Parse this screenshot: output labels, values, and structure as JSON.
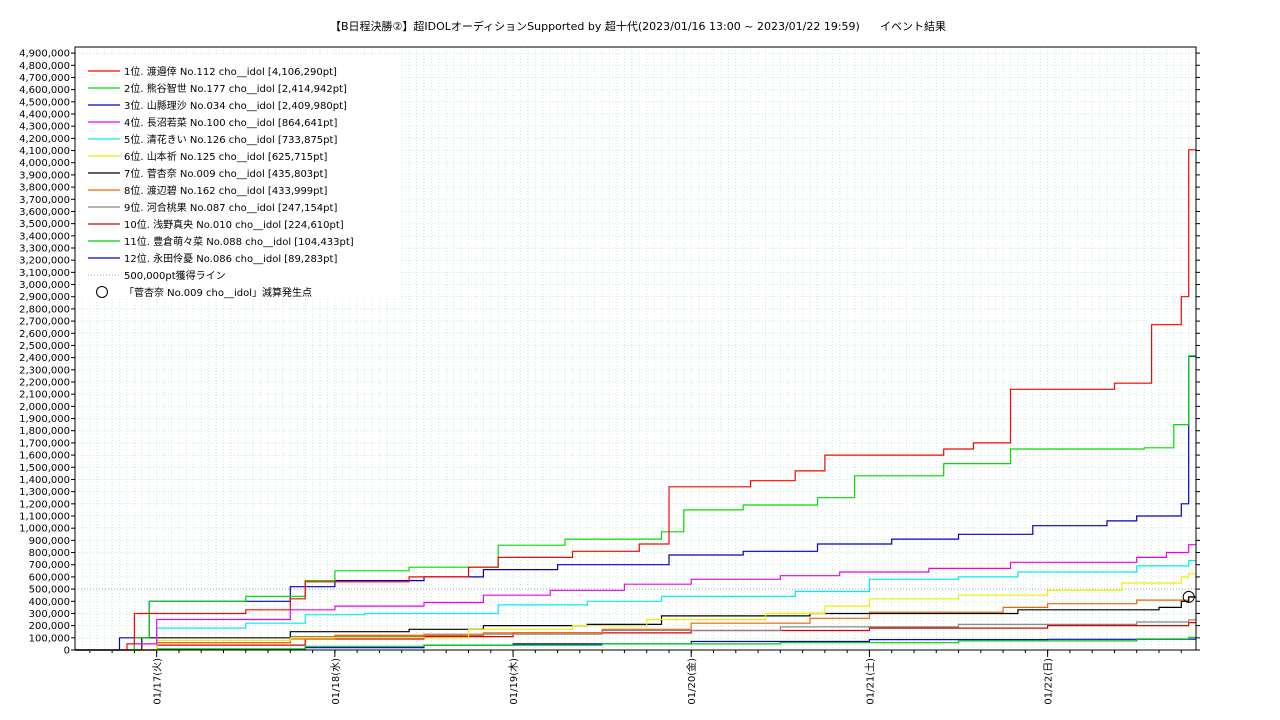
{
  "chart_data": {
    "type": "line",
    "title": "【B日程決勝②】超IDOLオーディションSupported by 超十代(2023/01/16 13:00 ~ 2023/01/22 19:59)",
    "subtitle": "イベント結果",
    "ylim": [
      0,
      4950000
    ],
    "yticks": [
      "0",
      "100,000",
      "200,000",
      "300,000",
      "400,000",
      "500,000",
      "600,000",
      "700,000",
      "800,000",
      "900,000",
      "1,000,000",
      "1,100,000",
      "1,200,000",
      "1,300,000",
      "1,400,000",
      "1,500,000",
      "1,600,000",
      "1,700,000",
      "1,800,000",
      "1,900,000",
      "2,000,000",
      "2,100,000",
      "2,200,000",
      "2,300,000",
      "2,400,000",
      "2,500,000",
      "2,600,000",
      "2,700,000",
      "2,800,000",
      "2,900,000",
      "3,000,000",
      "3,100,000",
      "3,200,000",
      "3,300,000",
      "3,400,000",
      "3,500,000",
      "3,600,000",
      "3,700,000",
      "3,800,000",
      "3,900,000",
      "4,000,000",
      "4,100,000",
      "4,200,000",
      "4,300,000",
      "4,400,000",
      "4,500,000",
      "4,600,000",
      "4,700,000",
      "4,800,000",
      "4,900,000"
    ],
    "xlim": [
      "2023-01-16 13:00",
      "2023-01-22 19:59"
    ],
    "xticks": [
      {
        "date": "2023-01-17 00:00",
        "label": "01/17(火)"
      },
      {
        "date": "2023-01-18 00:00",
        "label": "01/18(水)"
      },
      {
        "date": "2023-01-19 00:00",
        "label": "01/19(木)"
      },
      {
        "date": "2023-01-20 00:00",
        "label": "01/20(金)"
      },
      {
        "date": "2023-01-21 00:00",
        "label": "01/21(土)"
      },
      {
        "date": "2023-01-22 00:00",
        "label": "01/22(日)"
      }
    ],
    "grid": true,
    "legend_position": "top-left",
    "series": [
      {
        "name": "1位. 渡邉倖 No.112 cho__idol [4,106,290pt]",
        "color": "#ff0000",
        "points": [
          [
            "2023-01-16 13:00",
            0
          ],
          [
            "2023-01-16 20:00",
            50000
          ],
          [
            "2023-01-16 21:00",
            300000
          ],
          [
            "2023-01-17 12:00",
            330000
          ],
          [
            "2023-01-17 18:00",
            420000
          ],
          [
            "2023-01-17 20:00",
            560000
          ],
          [
            "2023-01-18 10:00",
            600000
          ],
          [
            "2023-01-18 18:00",
            680000
          ],
          [
            "2023-01-18 22:00",
            760000
          ],
          [
            "2023-01-19 08:00",
            810000
          ],
          [
            "2023-01-19 17:00",
            870000
          ],
          [
            "2023-01-19 21:00",
            1340000
          ],
          [
            "2023-01-20 08:00",
            1390000
          ],
          [
            "2023-01-20 14:00",
            1470000
          ],
          [
            "2023-01-20 18:00",
            1600000
          ],
          [
            "2023-01-21 10:00",
            1650000
          ],
          [
            "2023-01-21 14:00",
            1700000
          ],
          [
            "2023-01-21 19:00",
            2140000
          ],
          [
            "2023-01-22 09:00",
            2190000
          ],
          [
            "2023-01-22 14:00",
            2670000
          ],
          [
            "2023-01-22 18:00",
            2900000
          ],
          [
            "2023-01-22 19:00",
            4106290
          ],
          [
            "2023-01-22 19:59",
            4106290
          ]
        ]
      },
      {
        "name": "2位. 熊谷智世 No.177 cho__idol [2,414,942pt]",
        "color": "#00dd00",
        "points": [
          [
            "2023-01-16 13:00",
            0
          ],
          [
            "2023-01-16 21:00",
            100000
          ],
          [
            "2023-01-16 23:00",
            400000
          ],
          [
            "2023-01-17 12:00",
            440000
          ],
          [
            "2023-01-17 20:00",
            570000
          ],
          [
            "2023-01-18 00:00",
            650000
          ],
          [
            "2023-01-18 10:00",
            680000
          ],
          [
            "2023-01-18 22:00",
            860000
          ],
          [
            "2023-01-19 07:00",
            910000
          ],
          [
            "2023-01-19 20:00",
            970000
          ],
          [
            "2023-01-19 23:00",
            1150000
          ],
          [
            "2023-01-20 07:00",
            1190000
          ],
          [
            "2023-01-20 17:00",
            1250000
          ],
          [
            "2023-01-20 22:00",
            1430000
          ],
          [
            "2023-01-21 10:00",
            1530000
          ],
          [
            "2023-01-21 19:00",
            1650000
          ],
          [
            "2023-01-22 13:00",
            1660000
          ],
          [
            "2023-01-22 17:00",
            1850000
          ],
          [
            "2023-01-22 19:00",
            2414942
          ],
          [
            "2023-01-22 19:59",
            2414942
          ]
        ]
      },
      {
        "name": "3位. 山縣理沙 No.034 cho__idol [2,409,980pt]",
        "color": "#0000cc",
        "points": [
          [
            "2023-01-16 13:00",
            0
          ],
          [
            "2023-01-16 19:00",
            100000
          ],
          [
            "2023-01-16 23:00",
            400000
          ],
          [
            "2023-01-17 18:00",
            520000
          ],
          [
            "2023-01-18 00:00",
            570000
          ],
          [
            "2023-01-18 12:00",
            600000
          ],
          [
            "2023-01-18 20:00",
            660000
          ],
          [
            "2023-01-19 06:00",
            700000
          ],
          [
            "2023-01-19 21:00",
            780000
          ],
          [
            "2023-01-20 07:00",
            810000
          ],
          [
            "2023-01-20 17:00",
            870000
          ],
          [
            "2023-01-21 03:00",
            910000
          ],
          [
            "2023-01-21 12:00",
            950000
          ],
          [
            "2023-01-21 22:00",
            1020000
          ],
          [
            "2023-01-22 08:00",
            1060000
          ],
          [
            "2023-01-22 12:00",
            1100000
          ],
          [
            "2023-01-22 18:00",
            1200000
          ],
          [
            "2023-01-22 19:00",
            2409980
          ],
          [
            "2023-01-22 19:59",
            2409980
          ]
        ]
      },
      {
        "name": "4位. 長沼若菜 No.100 cho__idol [864,641pt]",
        "color": "#ee00ee",
        "points": [
          [
            "2023-01-16 13:00",
            0
          ],
          [
            "2023-01-16 21:00",
            50000
          ],
          [
            "2023-01-17 00:00",
            250000
          ],
          [
            "2023-01-17 18:00",
            330000
          ],
          [
            "2023-01-18 00:00",
            360000
          ],
          [
            "2023-01-18 12:00",
            390000
          ],
          [
            "2023-01-18 20:00",
            450000
          ],
          [
            "2023-01-19 05:00",
            490000
          ],
          [
            "2023-01-19 15:00",
            540000
          ],
          [
            "2023-01-20 00:00",
            580000
          ],
          [
            "2023-01-20 12:00",
            610000
          ],
          [
            "2023-01-20 20:00",
            640000
          ],
          [
            "2023-01-21 08:00",
            670000
          ],
          [
            "2023-01-21 19:00",
            720000
          ],
          [
            "2023-01-22 12:00",
            760000
          ],
          [
            "2023-01-22 16:00",
            800000
          ],
          [
            "2023-01-22 19:00",
            864641
          ],
          [
            "2023-01-22 19:59",
            864641
          ]
        ]
      },
      {
        "name": "5位. 清花きい No.126 cho__idol [733,875pt]",
        "color": "#00eeee",
        "points": [
          [
            "2023-01-16 13:00",
            0
          ],
          [
            "2023-01-16 21:00",
            50000
          ],
          [
            "2023-01-17 00:00",
            180000
          ],
          [
            "2023-01-17 12:00",
            220000
          ],
          [
            "2023-01-17 20:00",
            290000
          ],
          [
            "2023-01-18 04:00",
            300000
          ],
          [
            "2023-01-18 22:00",
            370000
          ],
          [
            "2023-01-19 10:00",
            400000
          ],
          [
            "2023-01-19 20:00",
            440000
          ],
          [
            "2023-01-20 14:00",
            480000
          ],
          [
            "2023-01-21 00:00",
            580000
          ],
          [
            "2023-01-21 12:00",
            600000
          ],
          [
            "2023-01-21 20:00",
            640000
          ],
          [
            "2023-01-22 12:00",
            690000
          ],
          [
            "2023-01-22 19:00",
            733875
          ],
          [
            "2023-01-22 19:59",
            733875
          ]
        ]
      },
      {
        "name": "6位. 山本祈 No.125 cho__idol [625,715pt]",
        "color": "#eeee00",
        "points": [
          [
            "2023-01-16 13:00",
            0
          ],
          [
            "2023-01-17 00:00",
            80000
          ],
          [
            "2023-01-17 18:00",
            100000
          ],
          [
            "2023-01-18 18:00",
            170000
          ],
          [
            "2023-01-19 08:00",
            200000
          ],
          [
            "2023-01-19 18:00",
            250000
          ],
          [
            "2023-01-20 10:00",
            300000
          ],
          [
            "2023-01-20 18:00",
            360000
          ],
          [
            "2023-01-21 00:00",
            420000
          ],
          [
            "2023-01-21 12:00",
            450000
          ],
          [
            "2023-01-22 00:00",
            490000
          ],
          [
            "2023-01-22 10:00",
            550000
          ],
          [
            "2023-01-22 18:00",
            600000
          ],
          [
            "2023-01-22 19:00",
            625715
          ],
          [
            "2023-01-22 19:59",
            625715
          ]
        ]
      },
      {
        "name": "7位. 菅杏奈 No.009 cho__idol [435,803pt]",
        "color": "#000000",
        "points": [
          [
            "2023-01-16 13:00",
            0
          ],
          [
            "2023-01-16 22:00",
            100000
          ],
          [
            "2023-01-17 18:00",
            150000
          ],
          [
            "2023-01-18 10:00",
            170000
          ],
          [
            "2023-01-18 20:00",
            200000
          ],
          [
            "2023-01-19 10:00",
            210000
          ],
          [
            "2023-01-19 20:00",
            280000
          ],
          [
            "2023-01-20 16:00",
            300000
          ],
          [
            "2023-01-21 20:00",
            330000
          ],
          [
            "2023-01-22 15:00",
            350000
          ],
          [
            "2023-01-22 18:00",
            400000
          ],
          [
            "2023-01-22 19:00",
            435803
          ],
          [
            "2023-01-22 19:59",
            435803
          ]
        ]
      },
      {
        "name": "8位. 渡辺碧 No.162 cho__idol [433,999pt]",
        "color": "#ee6600",
        "points": [
          [
            "2023-01-16 13:00",
            0
          ],
          [
            "2023-01-17 00:00",
            60000
          ],
          [
            "2023-01-17 18:00",
            90000
          ],
          [
            "2023-01-18 00:00",
            120000
          ],
          [
            "2023-01-18 20:00",
            140000
          ],
          [
            "2023-01-19 12:00",
            170000
          ],
          [
            "2023-01-20 00:00",
            220000
          ],
          [
            "2023-01-20 16:00",
            260000
          ],
          [
            "2023-01-21 00:00",
            310000
          ],
          [
            "2023-01-21 18:00",
            350000
          ],
          [
            "2023-01-22 00:00",
            380000
          ],
          [
            "2023-01-22 12:00",
            410000
          ],
          [
            "2023-01-22 19:00",
            433999
          ],
          [
            "2023-01-22 19:59",
            433999
          ]
        ]
      },
      {
        "name": "9位. 河合桃果 No.087 cho__idol [247,154pt]",
        "color": "#888888",
        "points": [
          [
            "2023-01-16 13:00",
            0
          ],
          [
            "2023-01-17 00:00",
            60000
          ],
          [
            "2023-01-17 18:00",
            110000
          ],
          [
            "2023-01-18 12:00",
            130000
          ],
          [
            "2023-01-19 12:00",
            160000
          ],
          [
            "2023-01-20 12:00",
            190000
          ],
          [
            "2023-01-21 12:00",
            210000
          ],
          [
            "2023-01-22 12:00",
            230000
          ],
          [
            "2023-01-22 19:00",
            247154
          ],
          [
            "2023-01-22 19:59",
            247154
          ]
        ]
      },
      {
        "name": "10位. 浅野真央 No.010 cho__idol [224,610pt]",
        "color": "#dd0000",
        "points": [
          [
            "2023-01-16 13:00",
            0
          ],
          [
            "2023-01-17 00:00",
            40000
          ],
          [
            "2023-01-17 20:00",
            90000
          ],
          [
            "2023-01-18 12:00",
            110000
          ],
          [
            "2023-01-19 00:00",
            140000
          ],
          [
            "2023-01-20 00:00",
            160000
          ],
          [
            "2023-01-21 00:00",
            180000
          ],
          [
            "2023-01-22 00:00",
            200000
          ],
          [
            "2023-01-22 19:00",
            224610
          ],
          [
            "2023-01-22 19:59",
            224610
          ]
        ]
      },
      {
        "name": "11位. 豊倉萌々菜 No.088 cho__idol [104,433pt]",
        "color": "#00cc00",
        "points": [
          [
            "2023-01-16 13:00",
            0
          ],
          [
            "2023-01-17 00:00",
            10000
          ],
          [
            "2023-01-17 20:00",
            30000
          ],
          [
            "2023-01-18 12:00",
            40000
          ],
          [
            "2023-01-19 12:00",
            50000
          ],
          [
            "2023-01-20 12:00",
            60000
          ],
          [
            "2023-01-21 12:00",
            75000
          ],
          [
            "2023-01-22 12:00",
            90000
          ],
          [
            "2023-01-22 19:00",
            104433
          ],
          [
            "2023-01-22 19:59",
            104433
          ]
        ]
      },
      {
        "name": "12位. 永田伶憂 No.086 cho__idol [89,283pt]",
        "color": "#0000ee",
        "points": [
          [
            "2023-01-16 13:00",
            0
          ],
          [
            "2023-01-17 00:00",
            5000
          ],
          [
            "2023-01-17 20:00",
            20000
          ],
          [
            "2023-01-18 12:00",
            40000
          ],
          [
            "2023-01-19 00:00",
            50000
          ],
          [
            "2023-01-20 00:00",
            70000
          ],
          [
            "2023-01-21 00:00",
            85000
          ],
          [
            "2023-01-22 00:00",
            88000
          ],
          [
            "2023-01-22 19:00",
            89283
          ],
          [
            "2023-01-22 19:59",
            89283
          ]
        ]
      }
    ],
    "reference_line": {
      "name": "500,000pt獲得ライン",
      "value": 500000,
      "color": "#aaaaaa"
    },
    "event_marker": {
      "name": "「菅杏奈 No.009 cho__idol」減算発生点",
      "date": "2023-01-22 19:00",
      "value": 435803
    }
  }
}
